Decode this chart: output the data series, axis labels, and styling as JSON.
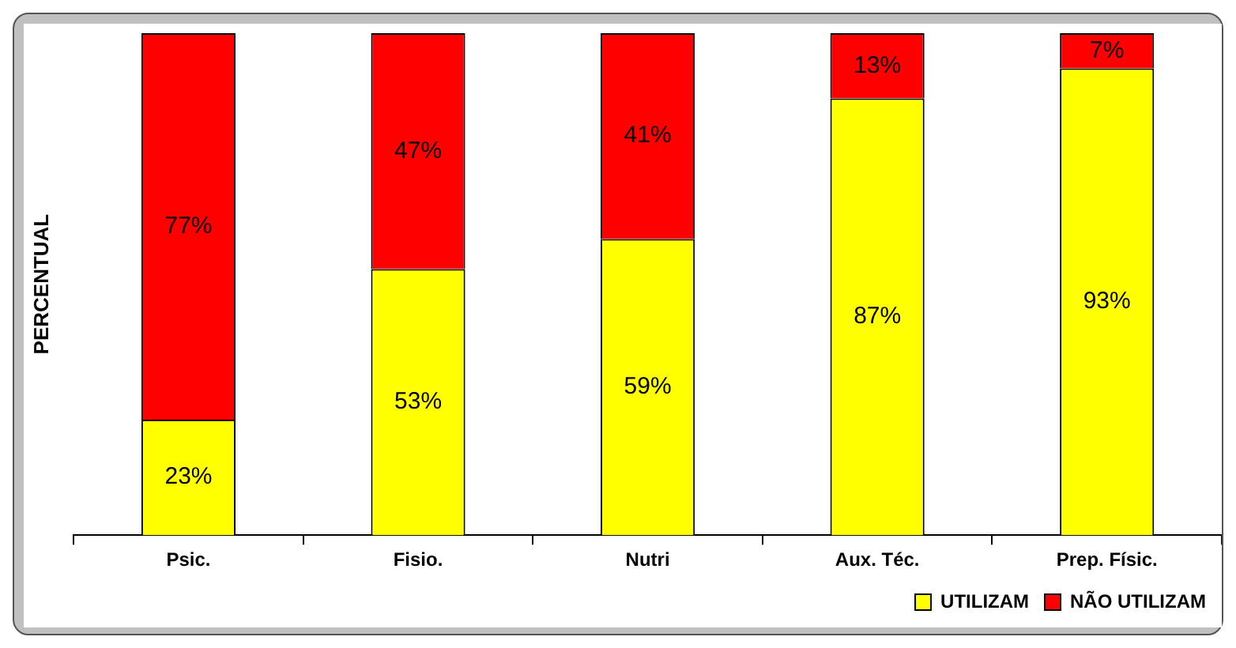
{
  "chart_data": {
    "type": "bar",
    "stacked": true,
    "ylabel": "PERCENTUAL",
    "categories": [
      "Psic.",
      "Fisio.",
      "Nutri",
      "Aux. Téc.",
      "Prep. Físic."
    ],
    "series": [
      {
        "name": "UTILIZAM",
        "color": "#ffff00",
        "values": [
          23,
          53,
          59,
          87,
          93
        ],
        "value_labels": [
          "23%",
          "53%",
          "59%",
          "87%",
          "93%"
        ]
      },
      {
        "name": "NÃO UTILIZAM",
        "color": "#ff0000",
        "values": [
          77,
          47,
          41,
          13,
          7
        ],
        "value_labels": [
          "77%",
          "47%",
          "41%",
          "13%",
          "7%"
        ]
      }
    ],
    "ylim": [
      0,
      100
    ],
    "tick_labels": "x",
    "grid": false,
    "legend": "bottom right"
  }
}
